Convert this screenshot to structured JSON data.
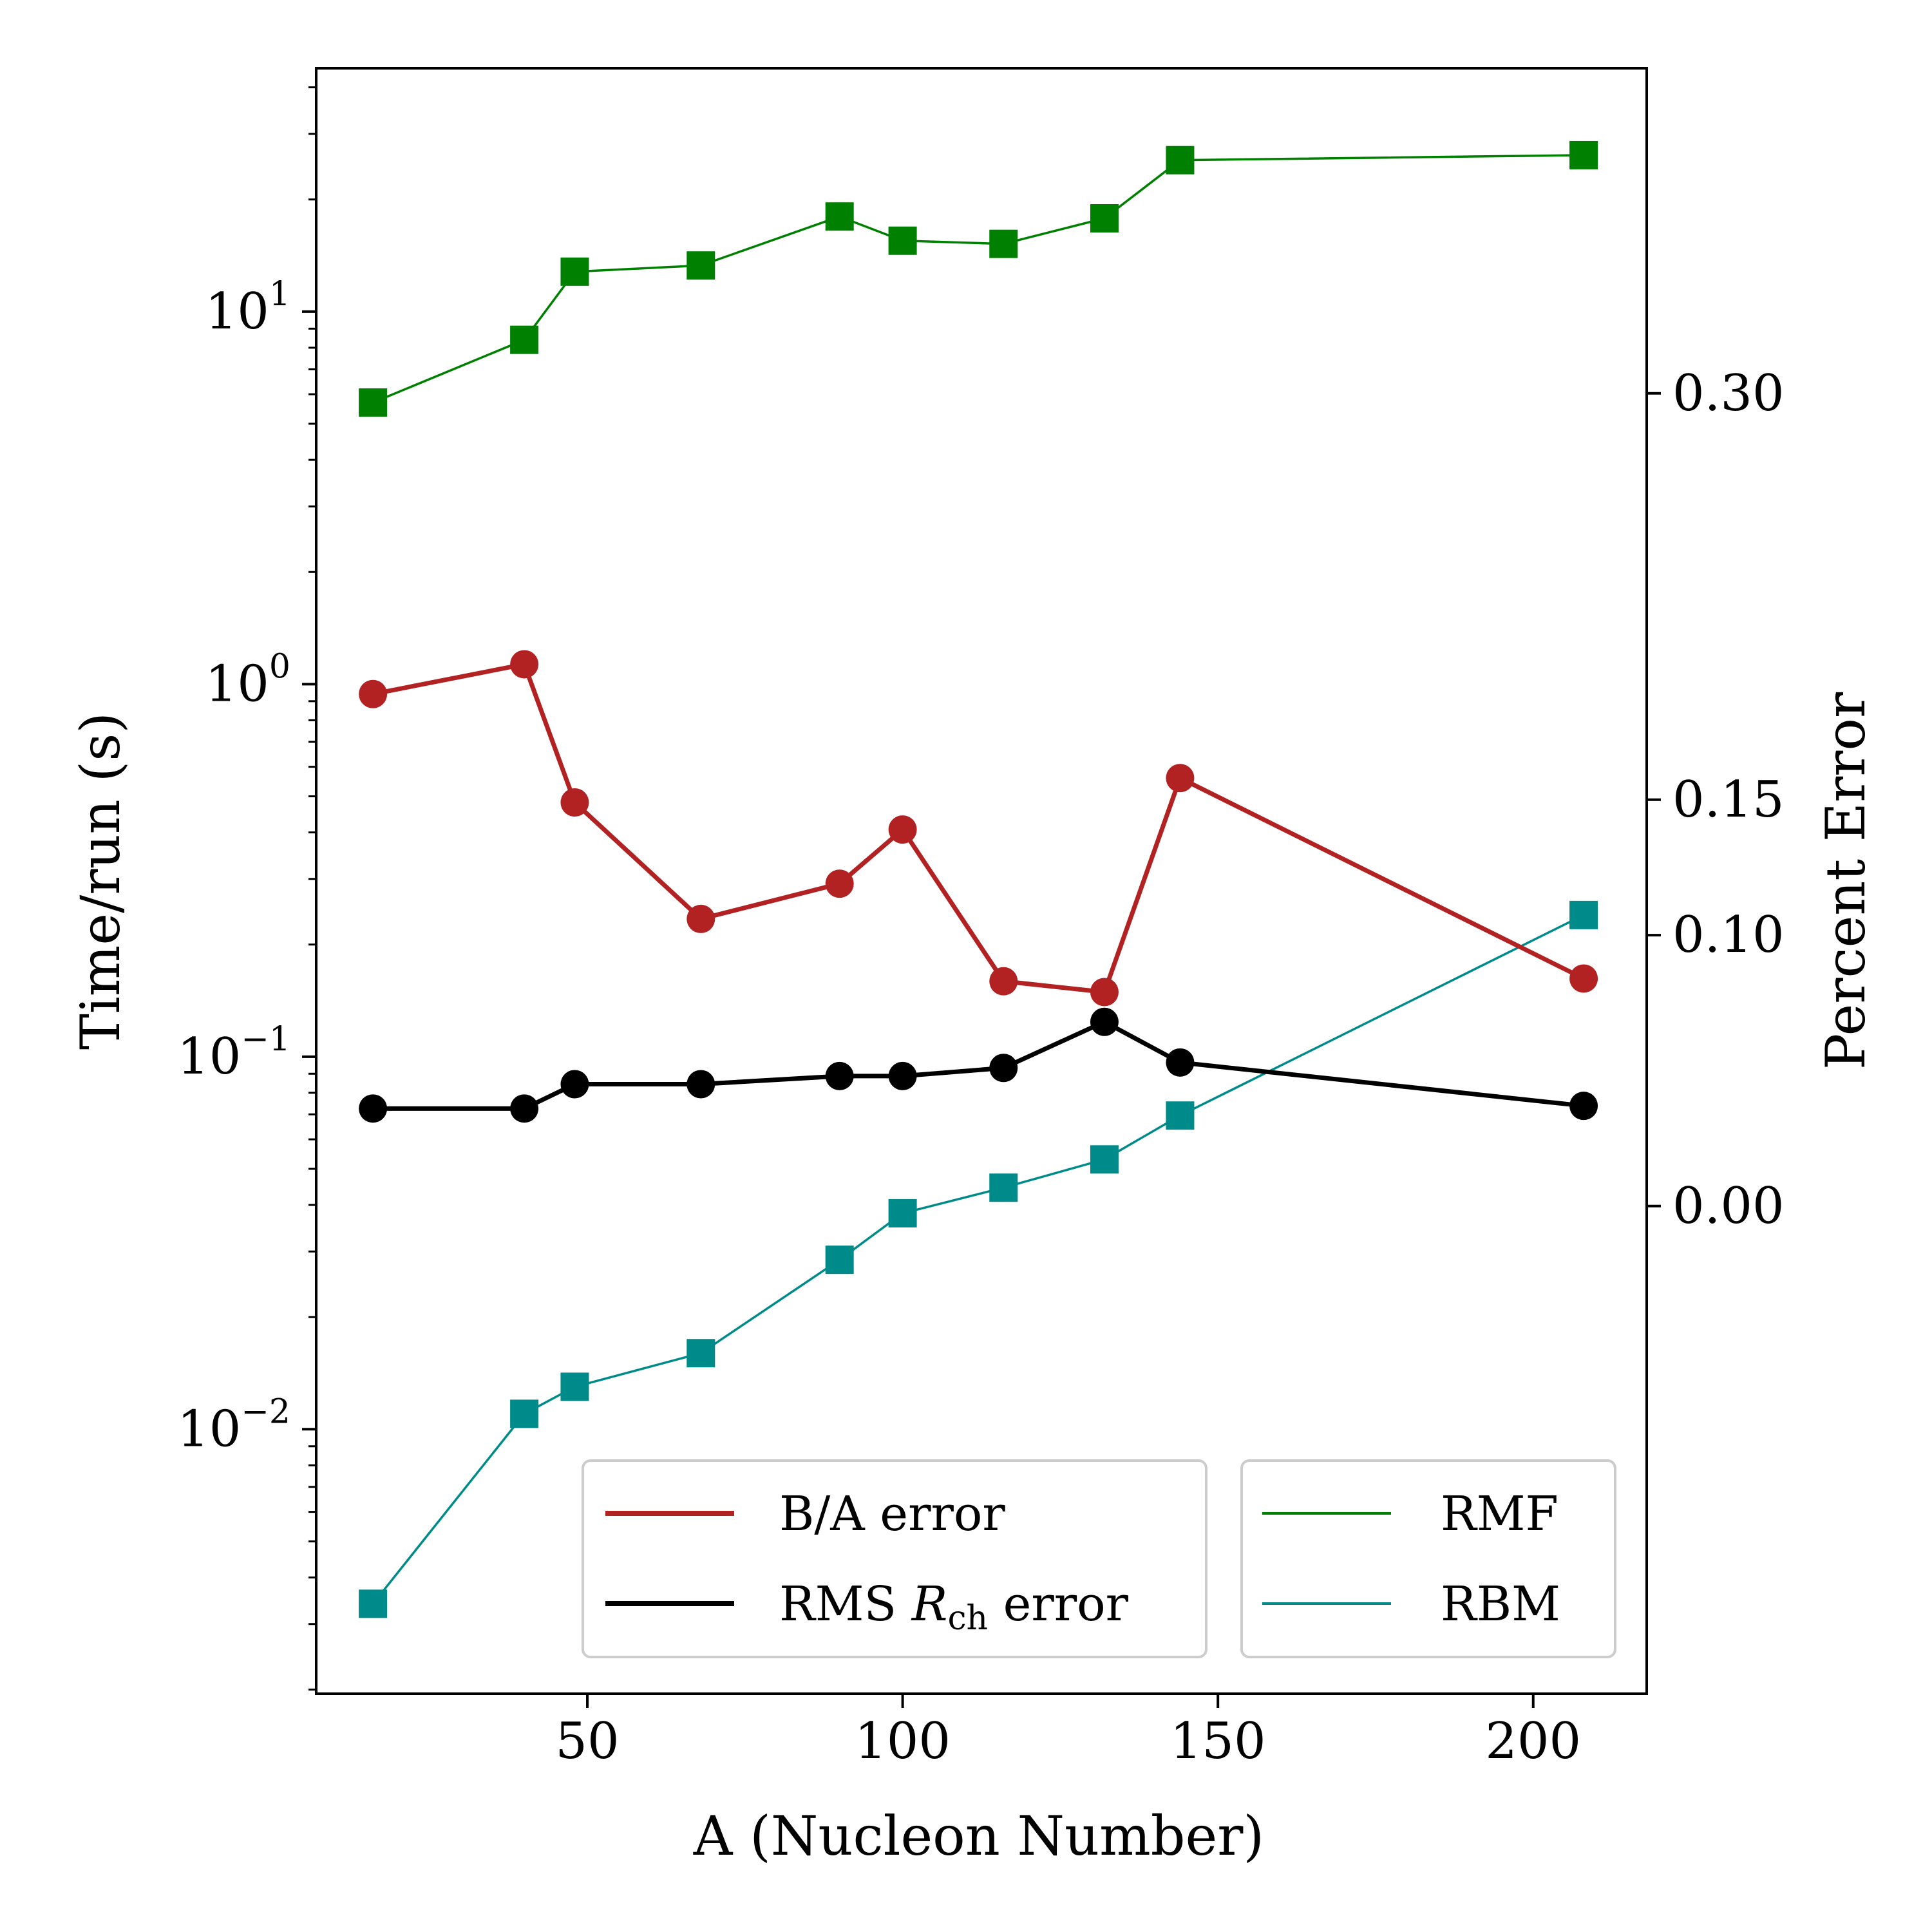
{
  "chart_data": {
    "type": "line",
    "xlabel": "A (Nucleon Number)",
    "ylabel_left": "Time/run (s)",
    "ylabel_right": "Percent Error",
    "x_ticks": [
      "50",
      "100",
      "150",
      "200"
    ],
    "x_tick_values": [
      50,
      100,
      150,
      200
    ],
    "xlim": [
      7,
      218
    ],
    "left_axis": {
      "scale": "log",
      "ylim": [
        0.00195,
        45
      ],
      "ticks": [
        {
          "value": 0.01,
          "base": "10",
          "exp": "−2"
        },
        {
          "value": 0.1,
          "base": "10",
          "exp": "−1"
        },
        {
          "value": 1,
          "base": "10",
          "exp": "0"
        },
        {
          "value": 10,
          "base": "10",
          "exp": "1"
        }
      ]
    },
    "right_axis": {
      "scale": "linear",
      "ylim": [
        -0.18,
        0.42
      ],
      "ticks": [
        "0.00",
        "0.10",
        "0.15",
        "0.30"
      ],
      "tick_values": [
        0.0,
        0.1,
        0.15,
        0.3
      ]
    },
    "series": [
      {
        "name": "RMF",
        "axis": "left",
        "marker": "square",
        "color": "#008000",
        "line_width": "thin",
        "x": [
          16,
          40,
          48,
          68,
          90,
          100,
          116,
          132,
          144,
          208
        ],
        "y": [
          5.7,
          8.4,
          12.8,
          13.3,
          18.0,
          15.5,
          15.2,
          17.8,
          25.5,
          26.3
        ]
      },
      {
        "name": "RBM",
        "axis": "left",
        "marker": "square",
        "color": "#008B8B",
        "line_width": "thin",
        "x": [
          16,
          40,
          48,
          68,
          90,
          100,
          116,
          132,
          144,
          208
        ],
        "y": [
          0.0034,
          0.011,
          0.013,
          0.016,
          0.0285,
          0.038,
          0.0445,
          0.053,
          0.0695,
          0.24
        ]
      },
      {
        "name": "B/A error",
        "axis": "right",
        "marker": "circle",
        "color": "#B22222",
        "line_width": "thick",
        "x": [
          16,
          40,
          48,
          68,
          90,
          100,
          116,
          132,
          144,
          208
        ],
        "y": [
          0.189,
          0.2,
          0.149,
          0.106,
          0.119,
          0.139,
          0.083,
          0.079,
          0.158,
          0.084
        ]
      },
      {
        "name": "RMS R_ch error",
        "axis": "right",
        "marker": "circle",
        "color": "#000000",
        "line_width": "thick",
        "x": [
          16,
          40,
          48,
          68,
          90,
          100,
          116,
          132,
          144,
          208
        ],
        "y": [
          0.036,
          0.036,
          0.045,
          0.045,
          0.048,
          0.048,
          0.051,
          0.068,
          0.053,
          0.037
        ]
      }
    ],
    "legends": [
      {
        "placement": "lower-center",
        "entries": [
          {
            "label": "B/A error",
            "color": "#B22222"
          },
          {
            "label_parts": [
              "RMS ",
              "R",
              "ch",
              " error"
            ],
            "color": "#000000"
          }
        ]
      },
      {
        "placement": "lower-right",
        "entries": [
          {
            "label": "RMF",
            "color": "#008000"
          },
          {
            "label": "RBM",
            "color": "#008B8B"
          }
        ]
      }
    ]
  }
}
